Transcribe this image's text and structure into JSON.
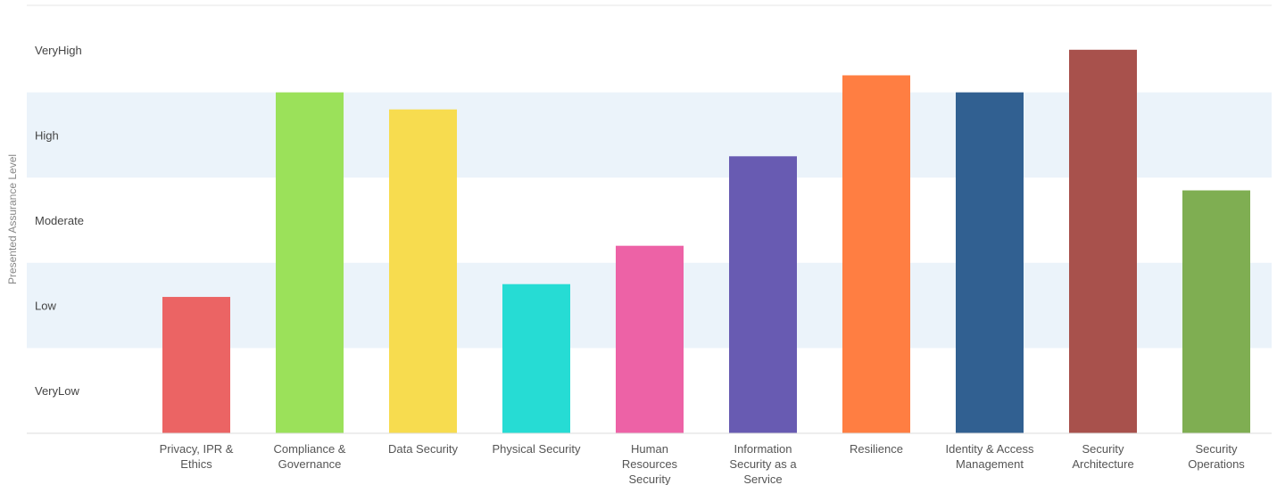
{
  "chart_data": {
    "type": "bar",
    "ylabel": "Presented Assurance Level",
    "levels": [
      "VeryLow",
      "Low",
      "Moderate",
      "High",
      "VeryHigh"
    ],
    "ylim": [
      0,
      5
    ],
    "grid": false,
    "legend": "none",
    "band_color": "#ebf3fa",
    "categories": [
      "Privacy, IPR & Ethics",
      "Compliance & Governance",
      "Data Security",
      "Physical Security",
      "Human Resources Security",
      "Information Security as a Service",
      "Resilience",
      "Identity & Access Management",
      "Security Architecture",
      "Security Operations"
    ],
    "values": [
      1.6,
      4.0,
      3.8,
      1.75,
      2.2,
      3.25,
      4.2,
      4.0,
      4.5,
      2.85
    ],
    "colors": [
      "#eb6464",
      "#9be15a",
      "#f7dc4f",
      "#26dcd4",
      "#ed62a6",
      "#685bb2",
      "#ff7e42",
      "#316091",
      "#a8514c",
      "#7fae52"
    ]
  }
}
